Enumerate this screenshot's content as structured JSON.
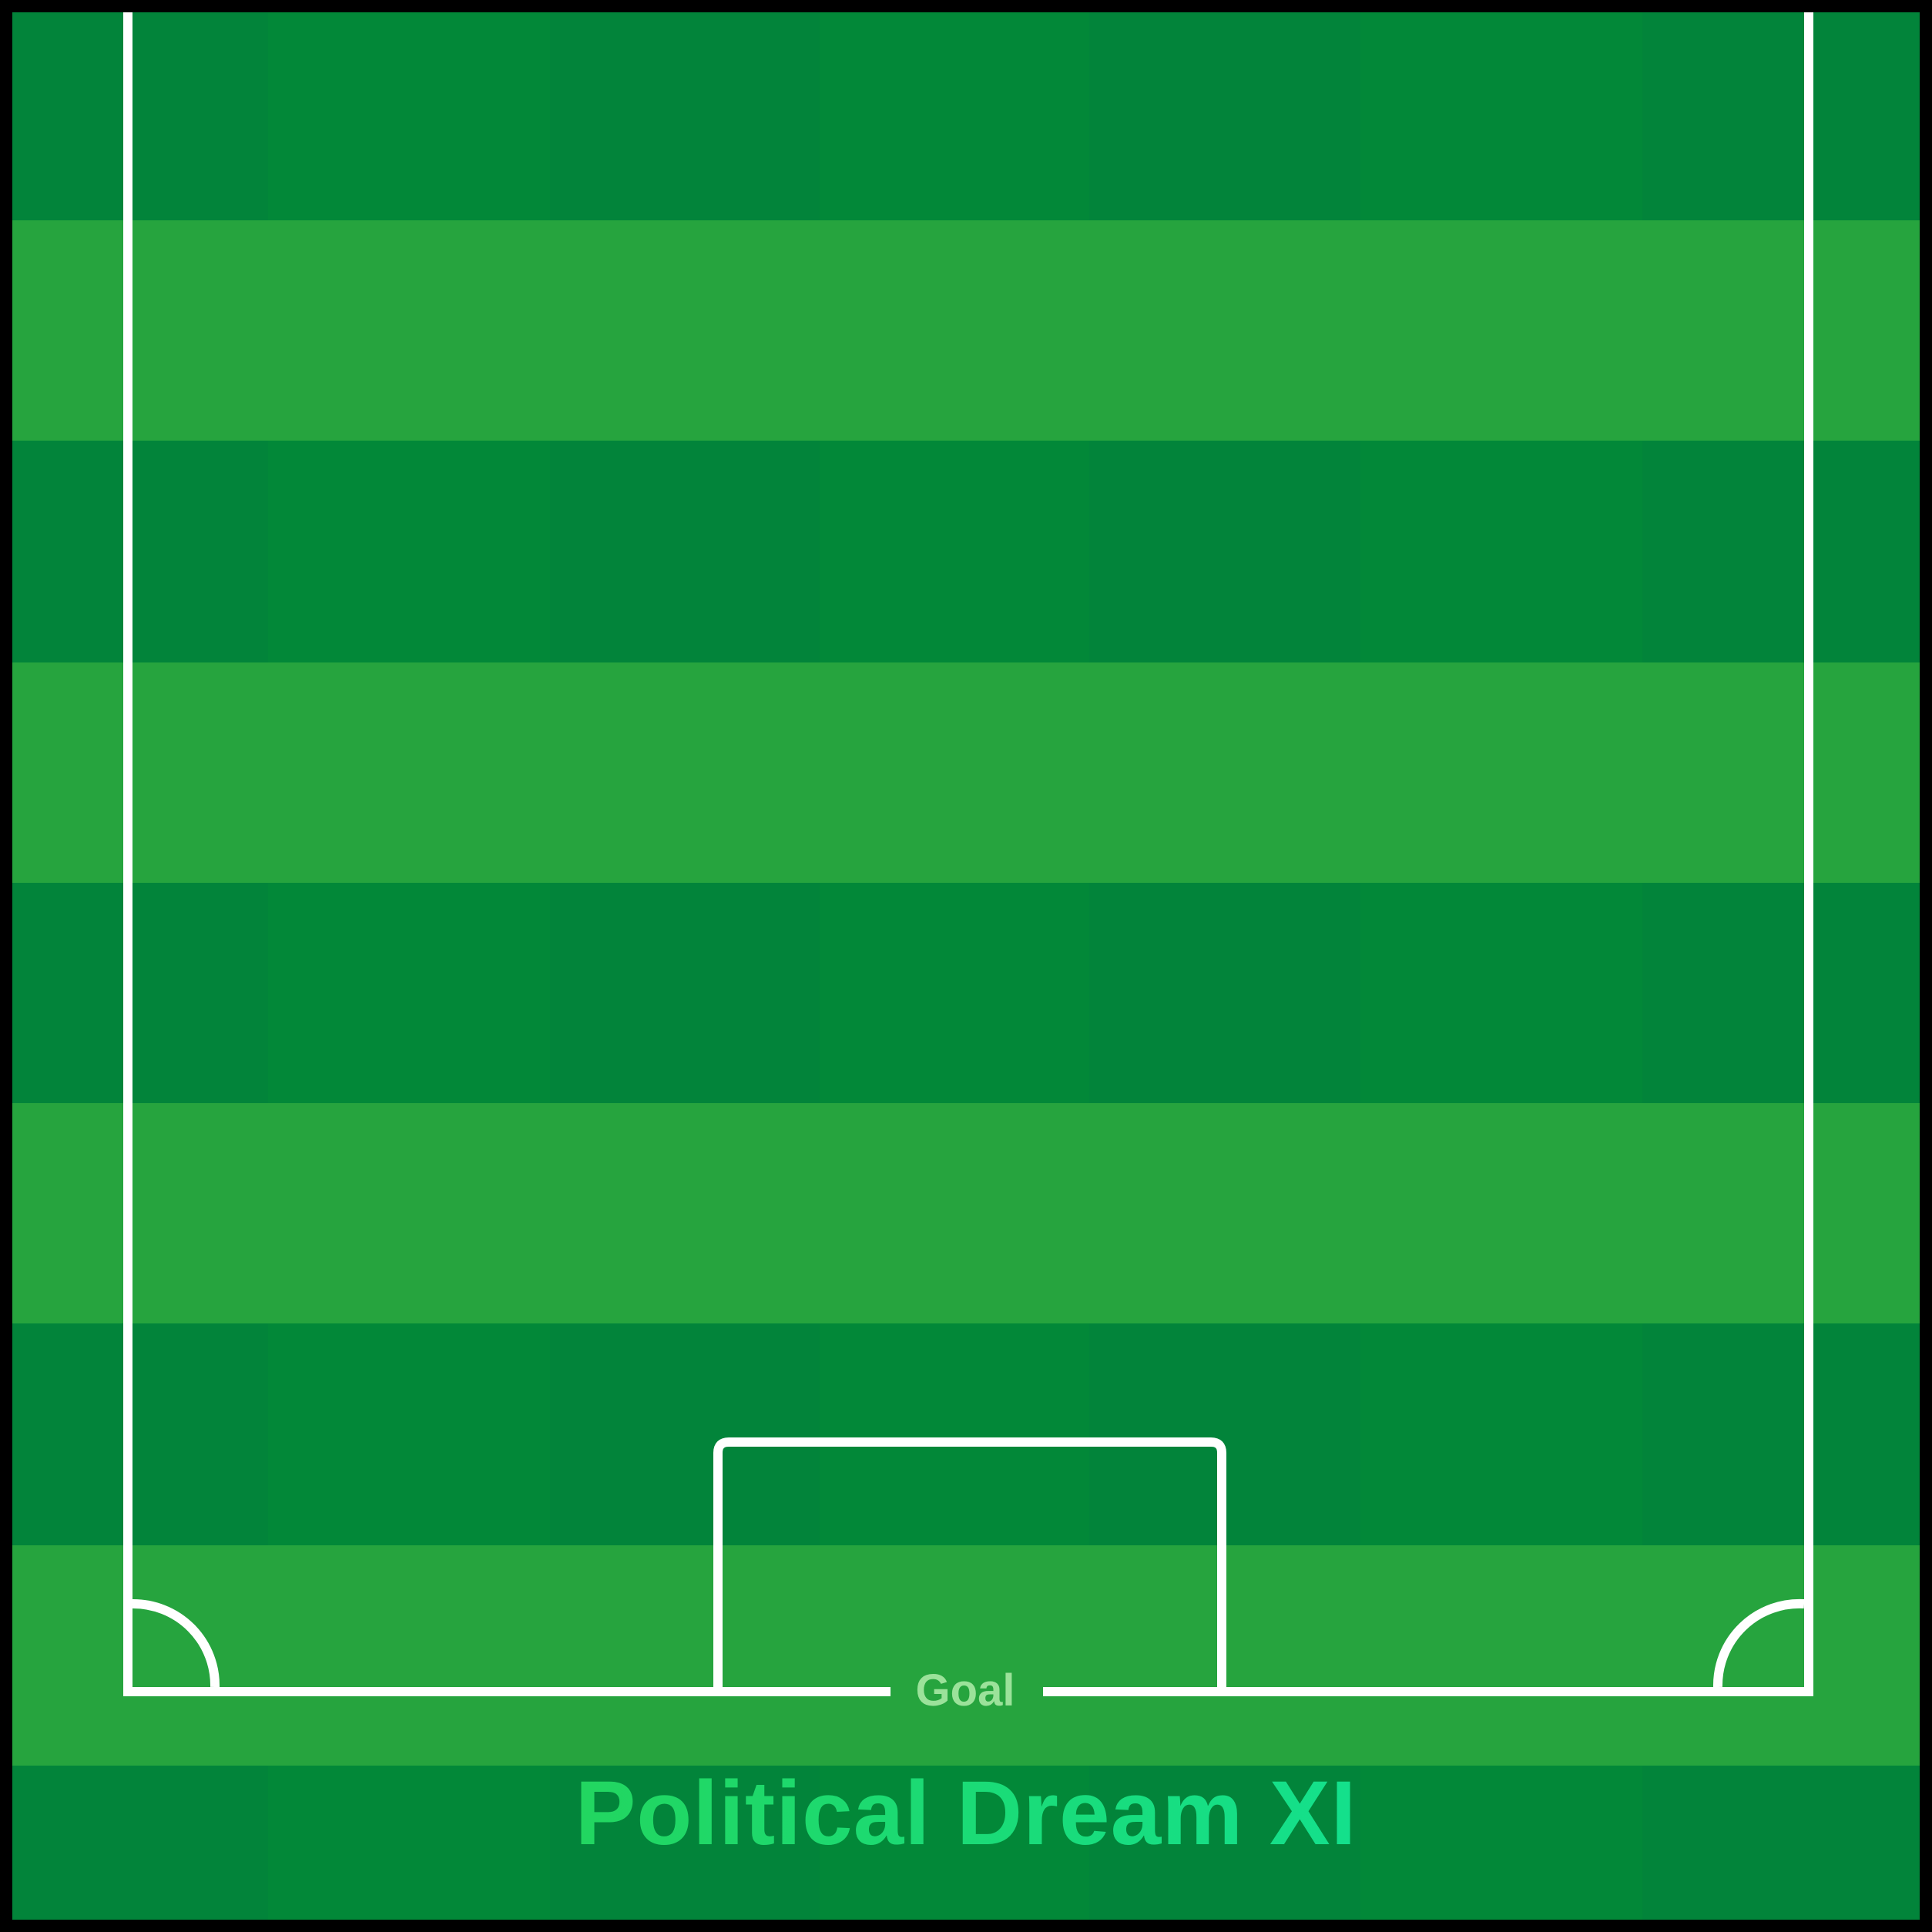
{
  "pitch": {
    "colors": {
      "frame": "#000000",
      "stripe_dark": "#02843A",
      "stripe_light": "#26A43E",
      "column_tint": "#038C36",
      "lines": "#FFFFFF"
    },
    "goal_label": "Goal",
    "goal_label_color": "#9BE29A"
  },
  "title": {
    "text": "Political Dream XI",
    "gradient_start": "#22D660",
    "gradient_end": "#14E08C"
  }
}
